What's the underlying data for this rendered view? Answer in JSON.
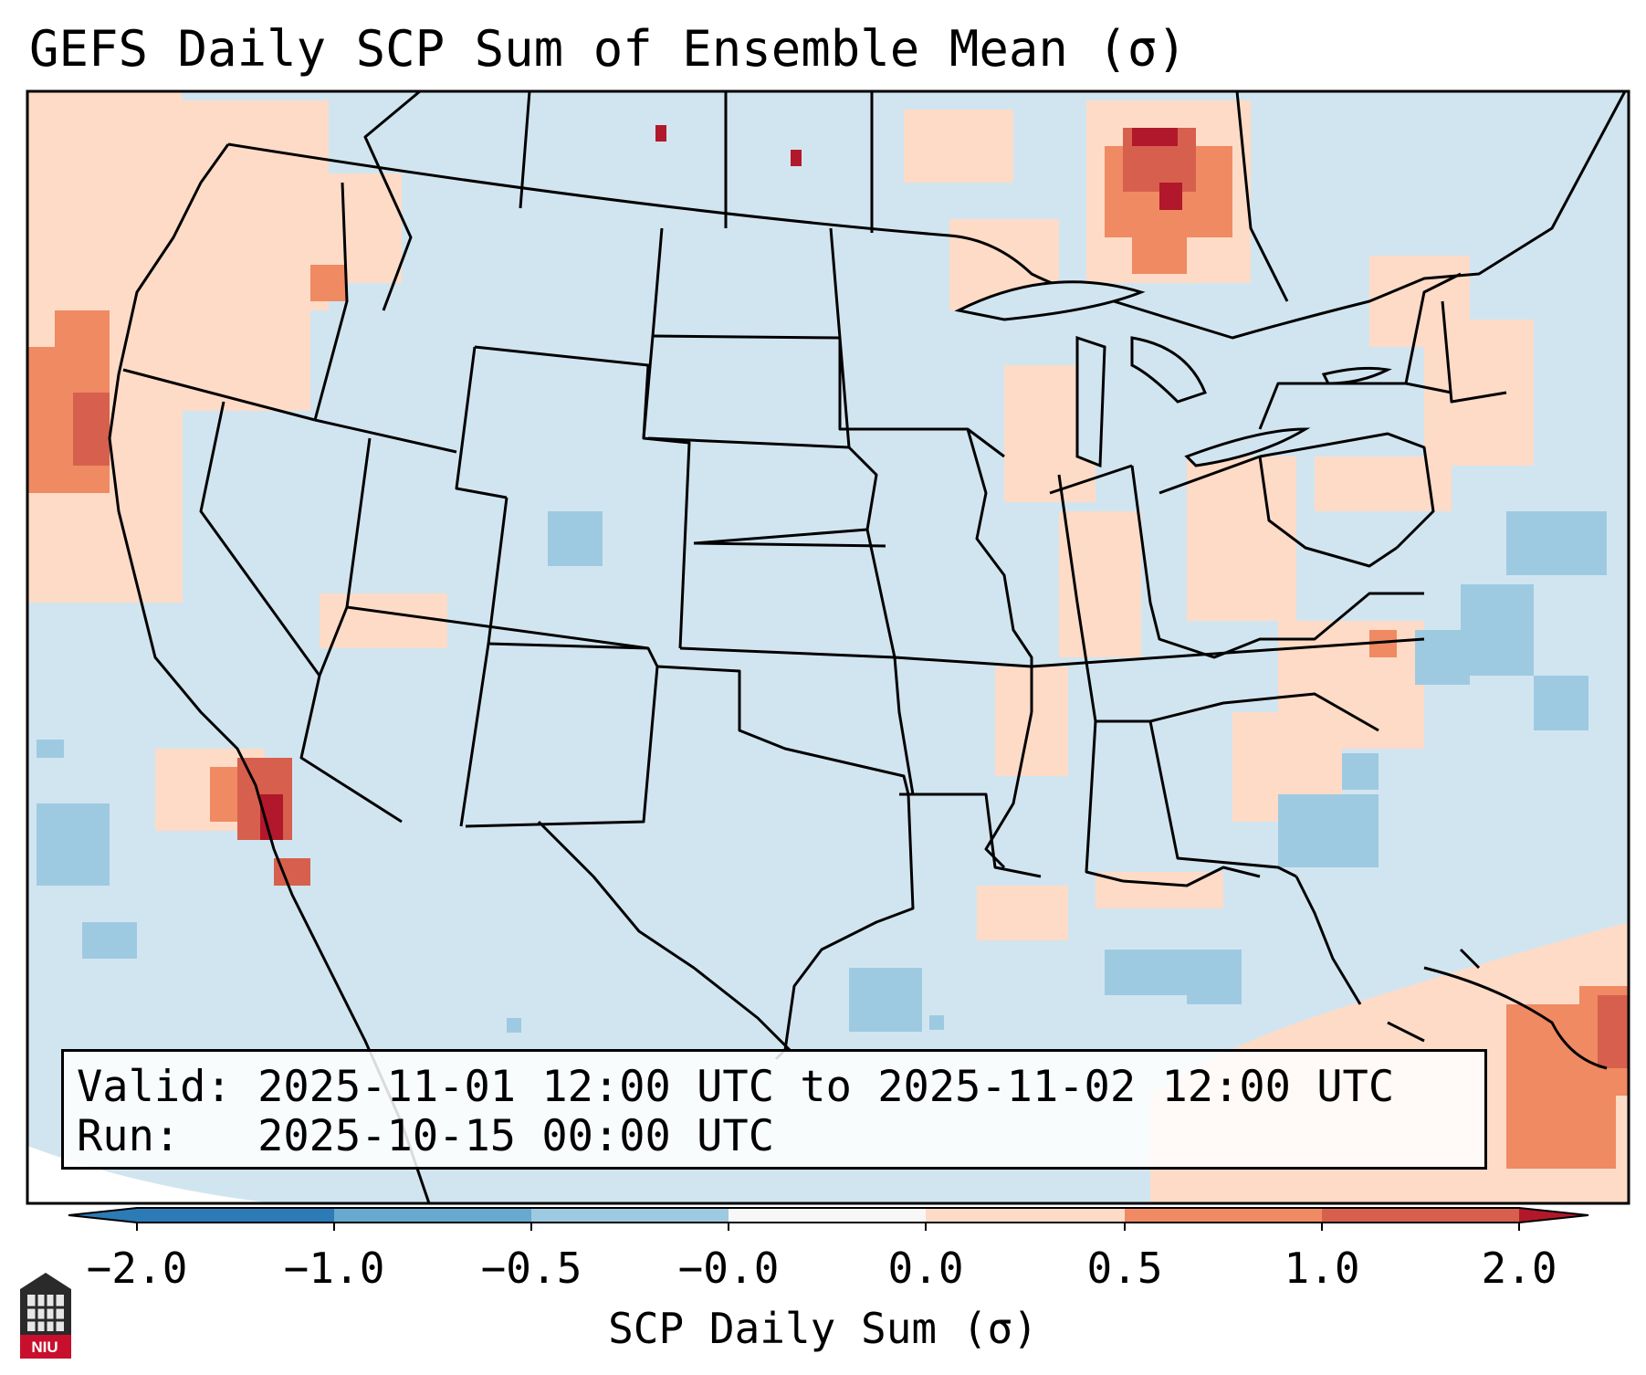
{
  "title": "GEFS Daily SCP Sum of Ensemble Mean (σ)",
  "valid_line": "Valid: 2025-11-01 12:00 UTC to 2025-11-02 12:00 UTC",
  "run_line": "Run:   2025-10-15 00:00 UTC",
  "colorbar": {
    "label": "SCP Daily Sum (σ)",
    "ticks": [
      "−2.0",
      "−1.0",
      "−0.5",
      "−0.0",
      "0.0",
      "0.5",
      "1.0",
      "2.0"
    ],
    "colors": [
      "#2c7bb6",
      "#67a9cf",
      "#9ecae1",
      "#d1e5f0",
      "#f7f7f7",
      "#fddbc7",
      "#ef8a62",
      "#d6604d",
      "#b2182b"
    ]
  },
  "map_background_color": "#d1e5f0",
  "logo_text": "NIU"
}
